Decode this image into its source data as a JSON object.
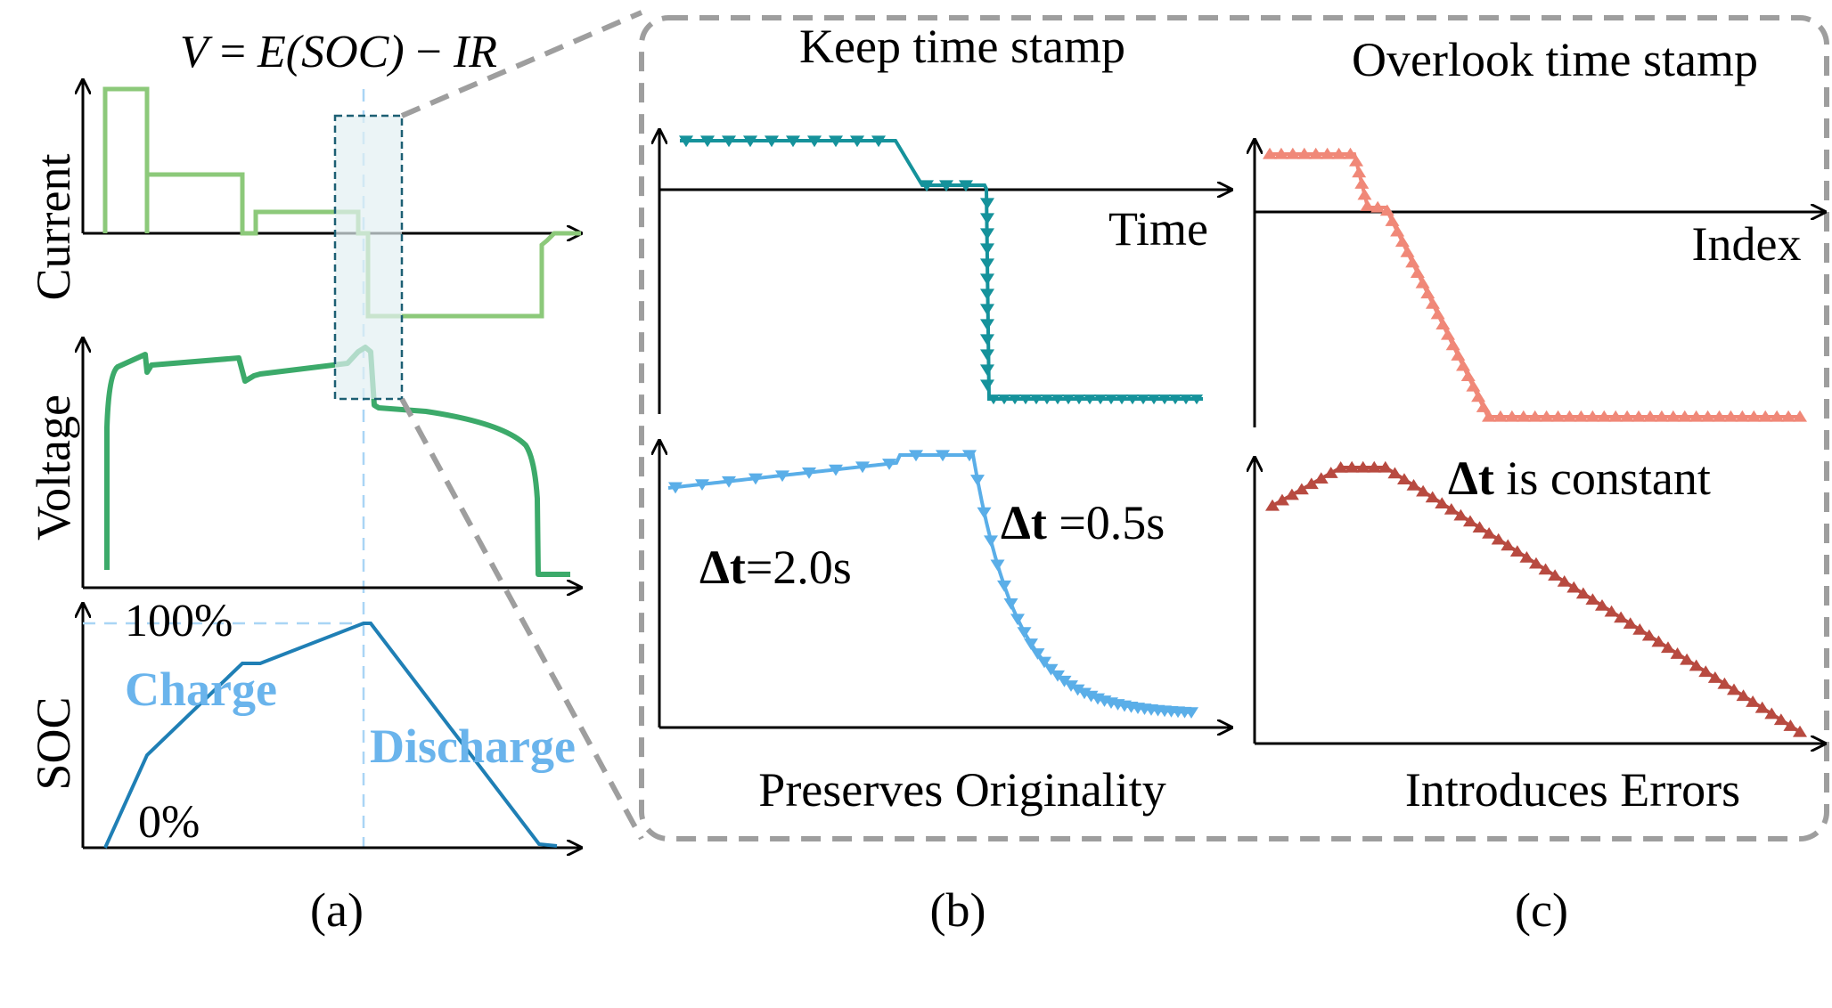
{
  "panel_a": {
    "formula": {
      "V": "V",
      "equals": " = ",
      "E": "E",
      "soc": "(SOC)",
      "minus": " − ",
      "IR": "IR"
    },
    "current_label": "Current",
    "voltage_label": "Voltage",
    "soc_label": "SOC",
    "soc_max": "100%",
    "soc_min": "0%",
    "charge_label": "Charge",
    "discharge_label": "Discharge",
    "caption": "(a)"
  },
  "panel_b": {
    "title": "Keep time stamp",
    "x_axis_label": "Time",
    "dt_left_delta": "Δt",
    "dt_left_value": "=2.0s",
    "dt_right_delta": "Δt",
    "dt_right_value": " =0.5s",
    "footer": "Preserves Originality",
    "caption": "(b)"
  },
  "panel_c": {
    "title": "Overlook time stamp",
    "x_axis_label": "Index",
    "dt_delta": "Δt",
    "dt_text": " is constant",
    "footer": "Introduces Errors",
    "caption": "(c)"
  },
  "colors": {
    "current_green": "#8cc97a",
    "voltage_green": "#3caa6a",
    "soc_blue": "#1f7fb5",
    "label_blue": "#6ab4ec",
    "teal": "#15929b",
    "sky": "#5aaee8",
    "salmon": "#f08878",
    "brick": "#b84a40",
    "dash_gray": "#9e9e9e"
  }
}
